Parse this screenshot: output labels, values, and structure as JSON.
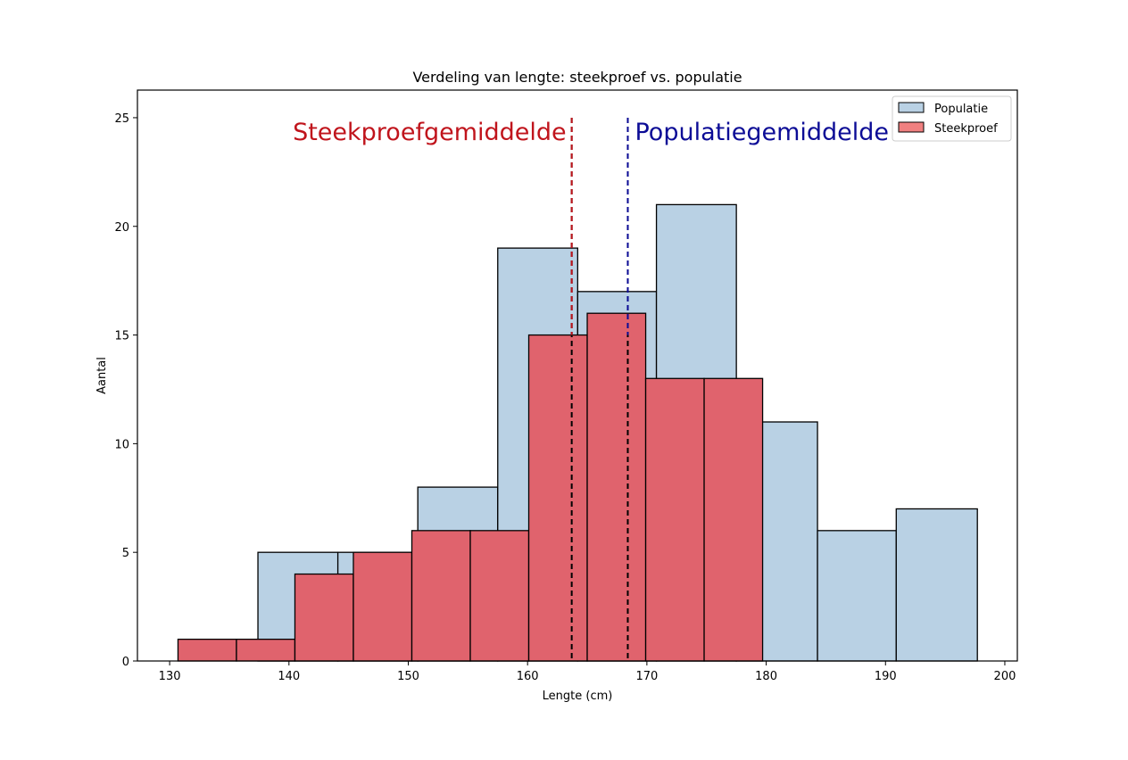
{
  "chart_data": {
    "type": "bar",
    "subtype": "histogram-overlay",
    "title": "Verdeling van lengte: steekproef vs. populatie",
    "xlabel": "Lengte (cm)",
    "ylabel": "Aantal",
    "xlim": [
      127.3,
      201.05
    ],
    "ylim": [
      0,
      26.27
    ],
    "xticks": [
      130,
      140,
      150,
      160,
      170,
      180,
      190,
      200
    ],
    "yticks": [
      0,
      5,
      10,
      15,
      20,
      25
    ],
    "grid": false,
    "legend_position": "top-right",
    "series": [
      {
        "name": "Populatie",
        "color": "#b9d1e4",
        "bin_edges": [
          137.4,
          144.1,
          150.8,
          157.5,
          164.2,
          170.8,
          177.5,
          184.3,
          190.9,
          197.7
        ],
        "counts": [
          5,
          5,
          8,
          19,
          17,
          21,
          11,
          6,
          7
        ]
      },
      {
        "name": "Steekproef",
        "color": "#e0636d",
        "legend_color": "#f08080",
        "bin_edges": [
          130.7,
          135.6,
          140.5,
          145.4,
          150.3,
          155.2,
          160.1,
          165.0,
          169.9,
          174.8,
          179.7
        ],
        "counts": [
          1,
          1,
          4,
          5,
          6,
          6,
          15,
          16,
          13,
          13
        ]
      }
    ],
    "annotations": [
      {
        "label": "Steekproefgemiddelde",
        "x": 163.7,
        "color": "#c0141c"
      },
      {
        "label": "Populatiegemiddelde",
        "x": 168.4,
        "color": "#0c0c96"
      }
    ]
  }
}
